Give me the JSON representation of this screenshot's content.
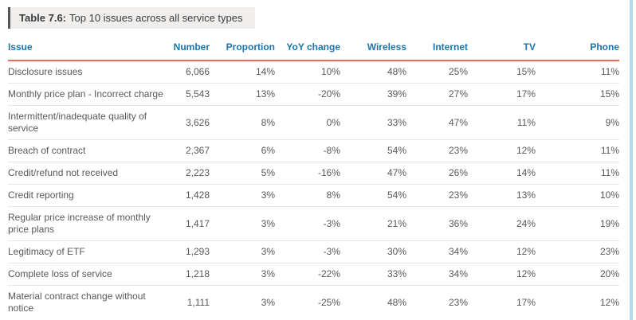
{
  "title": {
    "prefix": "Table 7.6:",
    "text": "Top 10 issues across all service types"
  },
  "colors": {
    "header_blue": "#1e74a9",
    "rule_red": "#e86a57",
    "title_bg": "#f0efee",
    "title_bar": "#55565a",
    "scrollbar_blue": "#b5d9ea"
  },
  "table": {
    "columns": [
      "Issue",
      "Number",
      "Proportion",
      "YoY change",
      "Wireless",
      "Internet",
      "TV",
      "Phone"
    ],
    "rows": [
      {
        "issue": "Disclosure issues",
        "number": "6,066",
        "proportion": "14%",
        "yoy_change": "10%",
        "wireless": "48%",
        "internet": "25%",
        "tv": "15%",
        "phone": "11%"
      },
      {
        "issue": "Monthly price plan - Incorrect charge",
        "number": "5,543",
        "proportion": "13%",
        "yoy_change": "-20%",
        "wireless": "39%",
        "internet": "27%",
        "tv": "17%",
        "phone": "15%"
      },
      {
        "issue": "Intermittent/inadequate quality of service",
        "number": "3,626",
        "proportion": "8%",
        "yoy_change": "0%",
        "wireless": "33%",
        "internet": "47%",
        "tv": "11%",
        "phone": "9%"
      },
      {
        "issue": "Breach of contract",
        "number": "2,367",
        "proportion": "6%",
        "yoy_change": "-8%",
        "wireless": "54%",
        "internet": "23%",
        "tv": "12%",
        "phone": "11%"
      },
      {
        "issue": "Credit/refund not received",
        "number": "2,223",
        "proportion": "5%",
        "yoy_change": "-16%",
        "wireless": "47%",
        "internet": "26%",
        "tv": "14%",
        "phone": "11%"
      },
      {
        "issue": "Credit reporting",
        "number": "1,428",
        "proportion": "3%",
        "yoy_change": "8%",
        "wireless": "54%",
        "internet": "23%",
        "tv": "13%",
        "phone": "10%"
      },
      {
        "issue": "Regular price increase of monthly price plans",
        "number": "1,417",
        "proportion": "3%",
        "yoy_change": "-3%",
        "wireless": "21%",
        "internet": "36%",
        "tv": "24%",
        "phone": "19%"
      },
      {
        "issue": "Legitimacy of ETF",
        "number": "1,293",
        "proportion": "3%",
        "yoy_change": "-3%",
        "wireless": "30%",
        "internet": "34%",
        "tv": "12%",
        "phone": "23%"
      },
      {
        "issue": "Complete loss of service",
        "number": "1,218",
        "proportion": "3%",
        "yoy_change": "-22%",
        "wireless": "33%",
        "internet": "34%",
        "tv": "12%",
        "phone": "20%"
      },
      {
        "issue": "Material contract change without notice",
        "number": "1,111",
        "proportion": "3%",
        "yoy_change": "-25%",
        "wireless": "48%",
        "internet": "23%",
        "tv": "17%",
        "phone": "12%"
      }
    ]
  }
}
